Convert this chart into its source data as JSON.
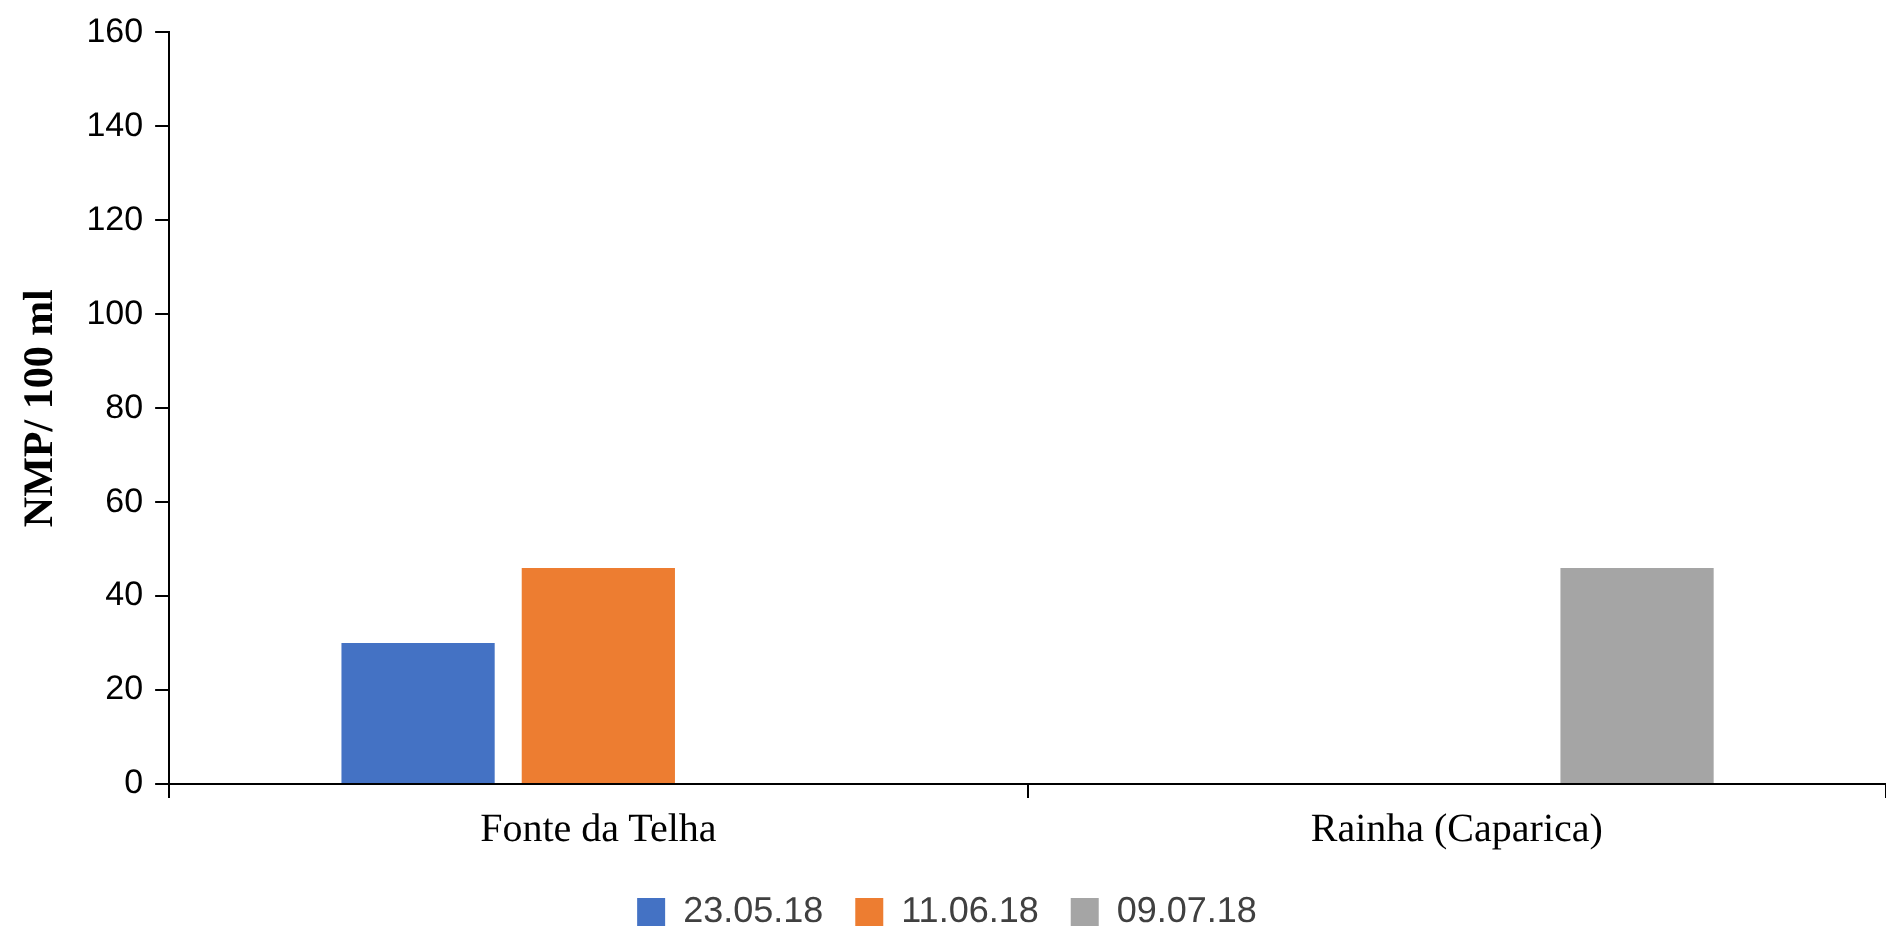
{
  "chart_data": {
    "type": "bar",
    "ylabel": "NMP/ 100 ml",
    "categories": [
      "Fonte da Telha",
      "Rainha (Caparica)"
    ],
    "series": [
      {
        "name": "23.05.18",
        "color": "#4472c4",
        "values": [
          30,
          null
        ]
      },
      {
        "name": "11.06.18",
        "color": "#ed7d31",
        "values": [
          46,
          null
        ]
      },
      {
        "name": "09.07.18",
        "color": "#a5a5a5",
        "values": [
          null,
          46
        ]
      }
    ],
    "ylim": [
      0,
      160
    ],
    "yticks": [
      0,
      20,
      40,
      60,
      80,
      100,
      120,
      140,
      160
    ],
    "grid": false,
    "legend": "bottom"
  }
}
